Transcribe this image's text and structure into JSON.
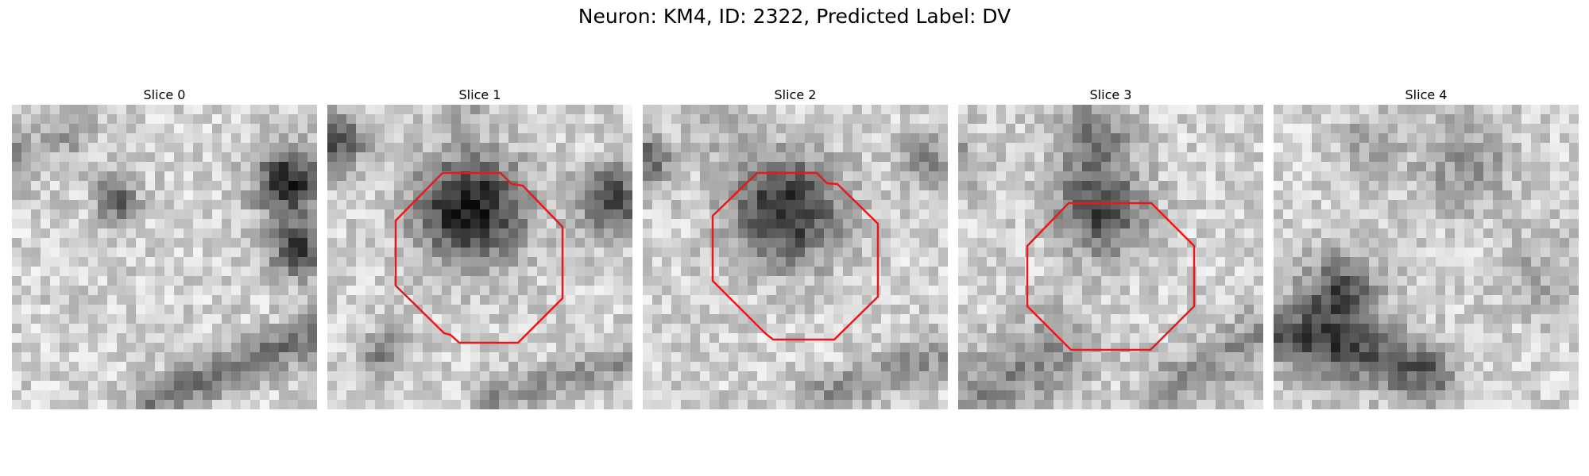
{
  "figure": {
    "title": "Neuron: KM4, ID: 2322, Predicted Label: DV"
  },
  "panels": [
    {
      "label": "Slice 0",
      "has_contour": false
    },
    {
      "label": "Slice 1",
      "has_contour": true,
      "contour_color": "#e8191a"
    },
    {
      "label": "Slice 2",
      "has_contour": true,
      "contour_color": "#e8191a"
    },
    {
      "label": "Slice 3",
      "has_contour": true,
      "contour_color": "#e8191a"
    },
    {
      "label": "Slice 4",
      "has_contour": false
    }
  ],
  "colors": {
    "contour": "#e8191a",
    "background": "#ffffff"
  }
}
